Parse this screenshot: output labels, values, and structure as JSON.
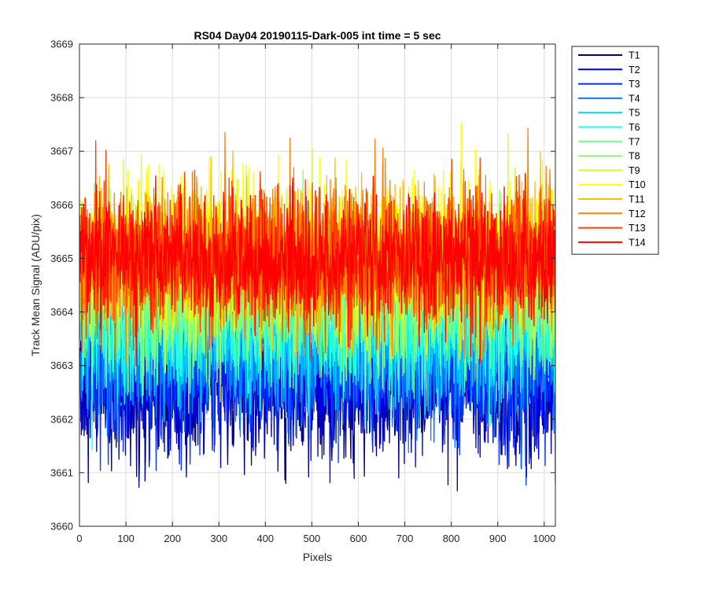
{
  "chart_data": {
    "type": "line",
    "title": "RS04 Day04 20190115-Dark-005 int time = 5 sec",
    "xlabel": "Pixels",
    "ylabel": "Track Mean Signal (ADU/pix)",
    "xlim": [
      0,
      1024
    ],
    "ylim": [
      3660,
      3669
    ],
    "xticks": [
      0,
      100,
      200,
      300,
      400,
      500,
      600,
      700,
      800,
      900,
      1000
    ],
    "yticks": [
      3660,
      3661,
      3662,
      3663,
      3664,
      3665,
      3666,
      3667,
      3668,
      3669
    ],
    "grid": true,
    "legend_position": "outside-top-right",
    "series_noise_description_note": "",
    "series": [
      {
        "name": "T1",
        "color": "#00008f",
        "level": 3662.5,
        "spread": 0.9
      },
      {
        "name": "T2",
        "color": "#0000df",
        "level": 3662.8,
        "spread": 0.9
      },
      {
        "name": "T3",
        "color": "#0030ff",
        "level": 3663.0,
        "spread": 0.9
      },
      {
        "name": "T4",
        "color": "#0080ff",
        "level": 3663.3,
        "spread": 0.9
      },
      {
        "name": "T5",
        "color": "#00cfff",
        "level": 3663.6,
        "spread": 0.9
      },
      {
        "name": "T6",
        "color": "#20ffdf",
        "level": 3663.9,
        "spread": 0.9
      },
      {
        "name": "T7",
        "color": "#70ff8f",
        "level": 3664.2,
        "spread": 0.9
      },
      {
        "name": "T8",
        "color": "#8fff70",
        "level": 3664.5,
        "spread": 0.9
      },
      {
        "name": "T9",
        "color": "#cfff30",
        "level": 3664.8,
        "spread": 0.9
      },
      {
        "name": "T10",
        "color": "#ffff00",
        "level": 3665.1,
        "spread": 0.9
      },
      {
        "name": "T11",
        "color": "#ffbf00",
        "level": 3665.1,
        "spread": 0.9
      },
      {
        "name": "T12",
        "color": "#ff8000",
        "level": 3665.0,
        "spread": 0.9
      },
      {
        "name": "T13",
        "color": "#ff4000",
        "level": 3665.0,
        "spread": 0.9
      },
      {
        "name": "T14",
        "color": "#ff0000",
        "level": 3665.0,
        "spread": 0.8
      }
    ]
  }
}
